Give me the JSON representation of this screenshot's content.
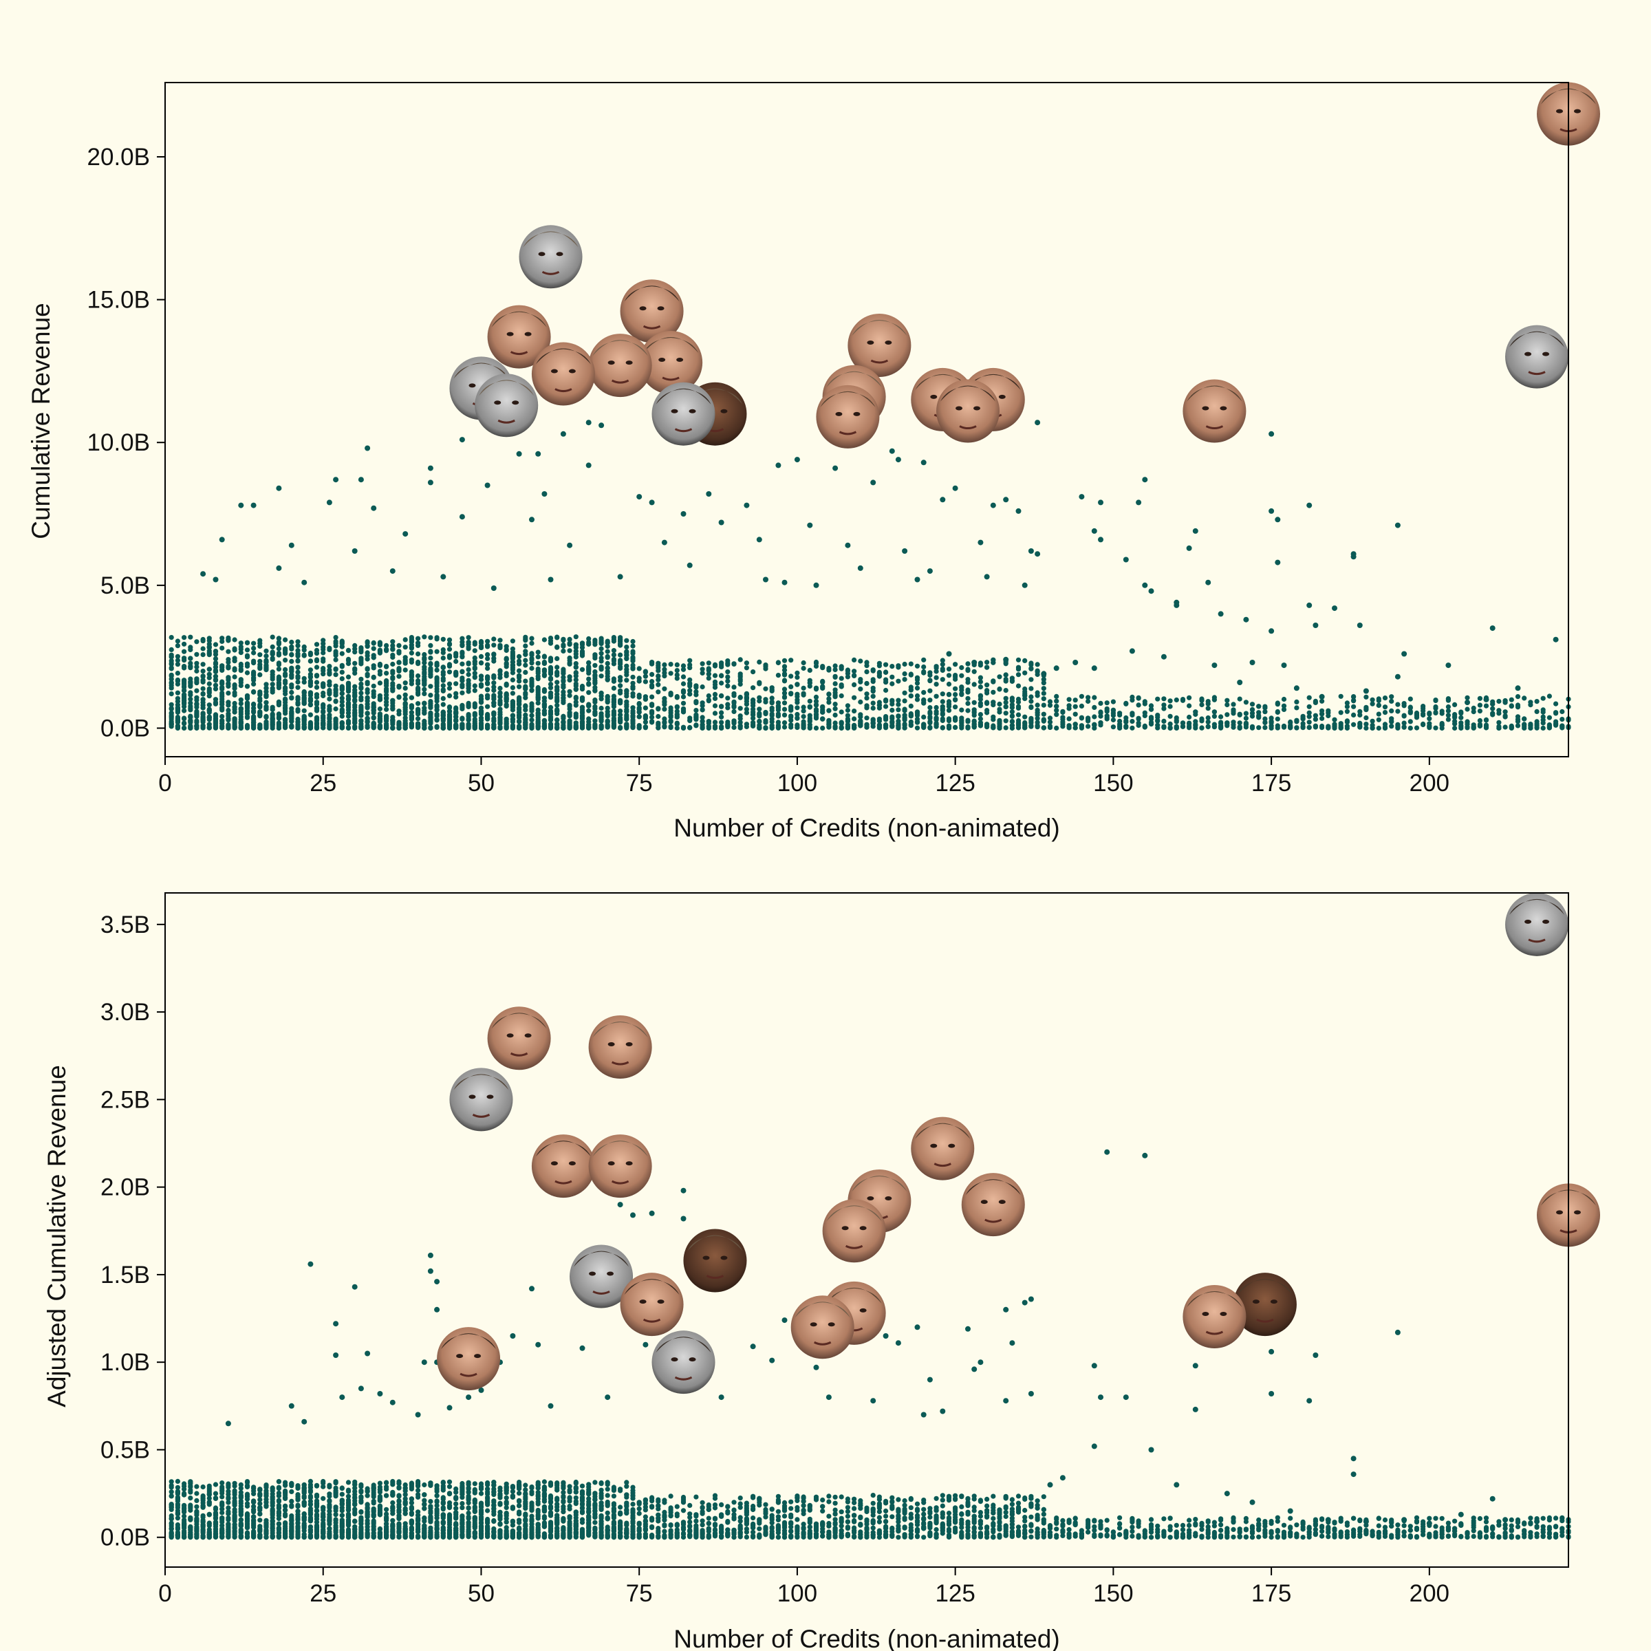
{
  "colors": {
    "background": "#fefcec",
    "point": "#0b5a55",
    "axis": "#000000"
  },
  "chart_data": [
    {
      "type": "scatter",
      "xlabel": "Number of Credits (non-animated)",
      "ylabel": "Cumulative Revenue",
      "xlim": [
        0,
        222
      ],
      "ylim": [
        -1.0,
        22.6
      ],
      "y_unit_suffix": "B",
      "xticks": [
        0,
        25,
        50,
        75,
        100,
        125,
        150,
        175,
        200
      ],
      "yticks": [
        0,
        5,
        10,
        15,
        20
      ],
      "ytick_labels": [
        "0.0B",
        "5.0B",
        "10.0B",
        "15.0B",
        "20.0B"
      ],
      "grid": false,
      "dense_band": "thousands of points with values between 0B and ~3B, spread across credits 1–222, densest below 75 credits",
      "points": [
        [
          32,
          9.8
        ],
        [
          42,
          9.1
        ],
        [
          47,
          10.1
        ],
        [
          56,
          9.6
        ],
        [
          59,
          9.6
        ],
        [
          63,
          10.3
        ],
        [
          67,
          10.7
        ],
        [
          69,
          10.6
        ],
        [
          67,
          9.2
        ],
        [
          75,
          8.1
        ],
        [
          77,
          7.9
        ],
        [
          91,
          10.7
        ],
        [
          97,
          9.2
        ],
        [
          100,
          9.4
        ],
        [
          106,
          9.1
        ],
        [
          111,
          10.4
        ],
        [
          115,
          9.7
        ],
        [
          116,
          9.4
        ],
        [
          120,
          9.3
        ],
        [
          123,
          8.0
        ],
        [
          125,
          8.4
        ],
        [
          138,
          10.7
        ],
        [
          155,
          8.7
        ],
        [
          175,
          10.3
        ],
        [
          145,
          8.1
        ],
        [
          148,
          7.9
        ],
        [
          18,
          8.4
        ],
        [
          27,
          8.7
        ],
        [
          31,
          8.7
        ],
        [
          42,
          8.6
        ],
        [
          51,
          8.5
        ],
        [
          60,
          8.2
        ],
        [
          86,
          8.2
        ],
        [
          92,
          7.8
        ],
        [
          12,
          7.8
        ],
        [
          14,
          7.8
        ],
        [
          26,
          7.9
        ],
        [
          33,
          7.7
        ],
        [
          47,
          7.4
        ],
        [
          58,
          7.3
        ],
        [
          82,
          7.5
        ],
        [
          88,
          7.2
        ],
        [
          102,
          7.1
        ],
        [
          112,
          8.6
        ],
        [
          131,
          7.8
        ],
        [
          133,
          8.0
        ],
        [
          135,
          7.6
        ],
        [
          154,
          7.9
        ],
        [
          175,
          7.6
        ],
        [
          176,
          7.3
        ],
        [
          181,
          7.8
        ],
        [
          195,
          7.1
        ],
        [
          9,
          6.6
        ],
        [
          20,
          6.4
        ],
        [
          30,
          6.2
        ],
        [
          38,
          6.8
        ],
        [
          64,
          6.4
        ],
        [
          79,
          6.5
        ],
        [
          94,
          6.6
        ],
        [
          108,
          6.4
        ],
        [
          117,
          6.2
        ],
        [
          129,
          6.5
        ],
        [
          137,
          6.2
        ],
        [
          138,
          6.1
        ],
        [
          147,
          6.9
        ],
        [
          148,
          6.6
        ],
        [
          152,
          5.9
        ],
        [
          163,
          6.9
        ],
        [
          162,
          6.3
        ],
        [
          176,
          5.8
        ],
        [
          188,
          6.1
        ],
        [
          188,
          6.0
        ],
        [
          6,
          5.4
        ],
        [
          8,
          5.2
        ],
        [
          18,
          5.6
        ],
        [
          22,
          5.1
        ],
        [
          36,
          5.5
        ],
        [
          44,
          5.3
        ],
        [
          52,
          4.9
        ],
        [
          61,
          5.2
        ],
        [
          72,
          5.3
        ],
        [
          83,
          5.7
        ],
        [
          95,
          5.2
        ],
        [
          98,
          5.1
        ],
        [
          103,
          5.0
        ],
        [
          110,
          5.6
        ],
        [
          119,
          5.2
        ],
        [
          121,
          5.5
        ],
        [
          130,
          5.3
        ],
        [
          136,
          5.0
        ],
        [
          155,
          5.0
        ],
        [
          156,
          4.8
        ],
        [
          165,
          5.1
        ],
        [
          167,
          4.0
        ],
        [
          160,
          4.4
        ],
        [
          160,
          4.3
        ],
        [
          171,
          3.8
        ],
        [
          175,
          3.4
        ],
        [
          181,
          4.3
        ],
        [
          182,
          3.6
        ],
        [
          185,
          4.2
        ],
        [
          189,
          3.6
        ],
        [
          210,
          3.5
        ],
        [
          220,
          3.1
        ],
        [
          203,
          2.2
        ],
        [
          196,
          2.6
        ],
        [
          177,
          2.2
        ],
        [
          172,
          2.3
        ],
        [
          166,
          2.2
        ],
        [
          158,
          2.5
        ],
        [
          153,
          2.7
        ],
        [
          147,
          2.1
        ],
        [
          144,
          2.3
        ],
        [
          139,
          1.9
        ],
        [
          141,
          2.1
        ],
        [
          133,
          2.4
        ],
        [
          128,
          2.3
        ],
        [
          124,
          2.6
        ],
        [
          214,
          1.4
        ],
        [
          209,
          1.0
        ],
        [
          206,
          0.9
        ],
        [
          195,
          1.8
        ],
        [
          190,
          1.3
        ],
        [
          183,
          1.1
        ],
        [
          179,
          1.4
        ],
        [
          170,
          1.6
        ]
      ],
      "highlights": [
        {
          "x": 222,
          "y": 21.5,
          "photo": "actor-portrait-1"
        },
        {
          "x": 61,
          "y": 16.5,
          "photo": "actor-portrait-2"
        },
        {
          "x": 77,
          "y": 14.6,
          "photo": "actor-portrait-3"
        },
        {
          "x": 56,
          "y": 13.7,
          "photo": "actor-portrait-4"
        },
        {
          "x": 113,
          "y": 13.4,
          "photo": "actor-portrait-5"
        },
        {
          "x": 217,
          "y": 13.0,
          "photo": "actor-portrait-6"
        },
        {
          "x": 80,
          "y": 12.8,
          "photo": "actor-portrait-7"
        },
        {
          "x": 72,
          "y": 12.7,
          "photo": "actor-portrait-8"
        },
        {
          "x": 63,
          "y": 12.4,
          "photo": "actor-portrait-9"
        },
        {
          "x": 50,
          "y": 11.9,
          "photo": "actor-portrait-10"
        },
        {
          "x": 109,
          "y": 11.6,
          "photo": "actor-portrait-11"
        },
        {
          "x": 131,
          "y": 11.5,
          "photo": "actor-portrait-12"
        },
        {
          "x": 123,
          "y": 11.5,
          "photo": "actor-portrait-13"
        },
        {
          "x": 54,
          "y": 11.3,
          "photo": "actor-portrait-14"
        },
        {
          "x": 127,
          "y": 11.1,
          "photo": "actor-portrait-15"
        },
        {
          "x": 166,
          "y": 11.1,
          "photo": "actor-portrait-16"
        },
        {
          "x": 87,
          "y": 11.0,
          "photo": "actor-portrait-17"
        },
        {
          "x": 82,
          "y": 11.0,
          "photo": "actor-portrait-18"
        },
        {
          "x": 108,
          "y": 10.9,
          "photo": "actor-portrait-19"
        }
      ]
    },
    {
      "type": "scatter",
      "xlabel": "Number of Credits (non-animated)",
      "ylabel": "Adjusted Cumulative Revenue",
      "xlim": [
        0,
        222
      ],
      "ylim": [
        -0.17,
        3.68
      ],
      "y_unit_suffix": "B",
      "xticks": [
        0,
        25,
        50,
        75,
        100,
        125,
        150,
        175,
        200
      ],
      "yticks": [
        0,
        0.5,
        1.0,
        1.5,
        2.0,
        2.5,
        3.0,
        3.5
      ],
      "ytick_labels": [
        "0.0B",
        "0.5B",
        "1.0B",
        "1.5B",
        "2.0B",
        "2.5B",
        "3.0B",
        "3.5B"
      ],
      "grid": false,
      "dense_band": "thousands of points with values between 0B and ~0.3B, spread across credits 1–222, densest below 100 credits",
      "points": [
        [
          149,
          2.2
        ],
        [
          155,
          2.18
        ],
        [
          82,
          1.98
        ],
        [
          72,
          1.9
        ],
        [
          74,
          1.84
        ],
        [
          77,
          1.85
        ],
        [
          82,
          1.82
        ],
        [
          42,
          1.61
        ],
        [
          42,
          1.52
        ],
        [
          43,
          1.46
        ],
        [
          23,
          1.56
        ],
        [
          30,
          1.43
        ],
        [
          58,
          1.42
        ],
        [
          98,
          1.24
        ],
        [
          111,
          1.23
        ],
        [
          114,
          1.15
        ],
        [
          116,
          1.11
        ],
        [
          133,
          1.3
        ],
        [
          136,
          1.34
        ],
        [
          137,
          1.36
        ],
        [
          43,
          1.3
        ],
        [
          27,
          1.22
        ],
        [
          27,
          1.04
        ],
        [
          32,
          1.05
        ],
        [
          41,
          1.0
        ],
        [
          43,
          1.0
        ],
        [
          53,
          1.0
        ],
        [
          55,
          1.15
        ],
        [
          59,
          1.1
        ],
        [
          66,
          1.08
        ],
        [
          76,
          1.1
        ],
        [
          86,
          0.92
        ],
        [
          93,
          1.09
        ],
        [
          96,
          1.01
        ],
        [
          103,
          0.97
        ],
        [
          119,
          1.2
        ],
        [
          121,
          0.9
        ],
        [
          127,
          1.19
        ],
        [
          128,
          0.96
        ],
        [
          129,
          1.0
        ],
        [
          134,
          1.11
        ],
        [
          147,
          0.98
        ],
        [
          163,
          0.98
        ],
        [
          175,
          1.06
        ],
        [
          182,
          1.04
        ],
        [
          195,
          1.17
        ],
        [
          10,
          0.65
        ],
        [
          20,
          0.75
        ],
        [
          22,
          0.66
        ],
        [
          28,
          0.8
        ],
        [
          31,
          0.85
        ],
        [
          34,
          0.82
        ],
        [
          36,
          0.77
        ],
        [
          40,
          0.7
        ],
        [
          45,
          0.74
        ],
        [
          48,
          0.8
        ],
        [
          50,
          0.84
        ],
        [
          61,
          0.75
        ],
        [
          70,
          0.8
        ],
        [
          88,
          0.8
        ],
        [
          105,
          0.8
        ],
        [
          112,
          0.78
        ],
        [
          120,
          0.7
        ],
        [
          123,
          0.72
        ],
        [
          133,
          0.78
        ],
        [
          137,
          0.82
        ],
        [
          148,
          0.8
        ],
        [
          152,
          0.8
        ],
        [
          163,
          0.73
        ],
        [
          175,
          0.82
        ],
        [
          181,
          0.78
        ],
        [
          188,
          0.45
        ],
        [
          188,
          0.36
        ],
        [
          210,
          0.22
        ],
        [
          217,
          0.09
        ],
        [
          212,
          0.1
        ],
        [
          205,
          0.13
        ],
        [
          200,
          0.08
        ],
        [
          196,
          0.1
        ],
        [
          190,
          0.09
        ],
        [
          184,
          0.1
        ],
        [
          178,
          0.15
        ],
        [
          172,
          0.2
        ],
        [
          168,
          0.25
        ],
        [
          160,
          0.3
        ],
        [
          156,
          0.5
        ],
        [
          147,
          0.52
        ],
        [
          142,
          0.34
        ],
        [
          140,
          0.3
        ]
      ],
      "highlights": [
        {
          "x": 217,
          "y": 3.5,
          "photo": "actor-portrait-6"
        },
        {
          "x": 56,
          "y": 2.85,
          "photo": "actor-portrait-4"
        },
        {
          "x": 72,
          "y": 2.8,
          "photo": "actor-portrait-20"
        },
        {
          "x": 50,
          "y": 2.5,
          "photo": "actor-portrait-10"
        },
        {
          "x": 123,
          "y": 2.22,
          "photo": "actor-portrait-13"
        },
        {
          "x": 63,
          "y": 2.12,
          "photo": "actor-portrait-9"
        },
        {
          "x": 72,
          "y": 2.12,
          "photo": "actor-portrait-8"
        },
        {
          "x": 113,
          "y": 1.92,
          "photo": "actor-portrait-5"
        },
        {
          "x": 131,
          "y": 1.9,
          "photo": "actor-portrait-12"
        },
        {
          "x": 222,
          "y": 1.84,
          "photo": "actor-portrait-1"
        },
        {
          "x": 109,
          "y": 1.75,
          "photo": "actor-portrait-11"
        },
        {
          "x": 87,
          "y": 1.58,
          "photo": "actor-portrait-17"
        },
        {
          "x": 69,
          "y": 1.49,
          "photo": "actor-portrait-21"
        },
        {
          "x": 77,
          "y": 1.33,
          "photo": "actor-portrait-3"
        },
        {
          "x": 174,
          "y": 1.33,
          "photo": "actor-portrait-22"
        },
        {
          "x": 109,
          "y": 1.28,
          "photo": "actor-portrait-19"
        },
        {
          "x": 166,
          "y": 1.26,
          "photo": "actor-portrait-16"
        },
        {
          "x": 104,
          "y": 1.2,
          "photo": "actor-portrait-23"
        },
        {
          "x": 82,
          "y": 1.0,
          "photo": "actor-portrait-18"
        },
        {
          "x": 48,
          "y": 1.02,
          "photo": "actor-portrait-24"
        }
      ]
    }
  ]
}
